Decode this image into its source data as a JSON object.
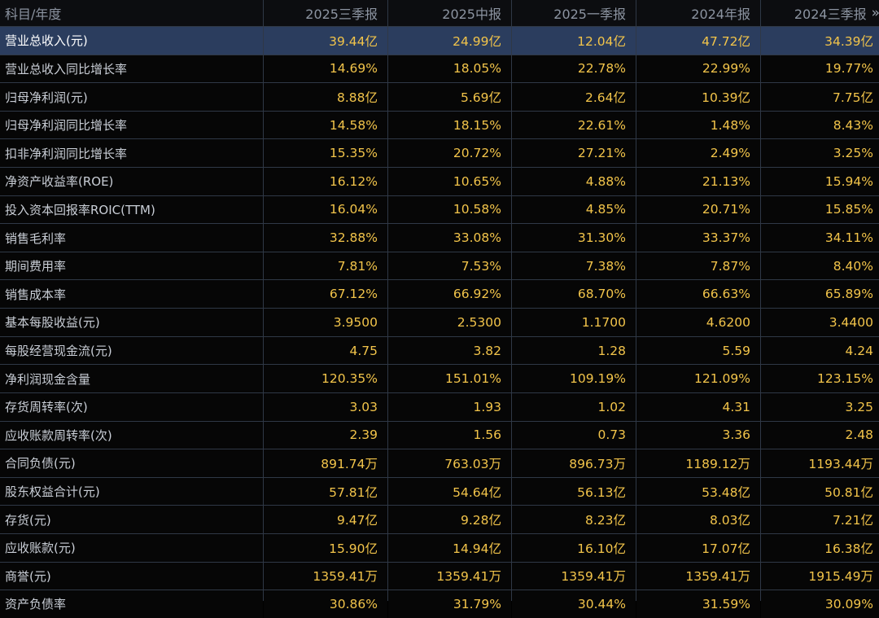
{
  "header": {
    "label": "科目/年度",
    "columns": [
      "2025三季报",
      "2025中报",
      "2025一季报",
      "2024年报",
      "2024三季报"
    ],
    "more": "»"
  },
  "rows": [
    {
      "label": "营业总收入(元)",
      "values": [
        "39.44亿",
        "24.99亿",
        "12.04亿",
        "47.72亿",
        "34.39亿"
      ]
    },
    {
      "label": "营业总收入同比增长率",
      "values": [
        "14.69%",
        "18.05%",
        "22.78%",
        "22.99%",
        "19.77%"
      ]
    },
    {
      "label": "归母净利润(元)",
      "values": [
        "8.88亿",
        "5.69亿",
        "2.64亿",
        "10.39亿",
        "7.75亿"
      ]
    },
    {
      "label": "归母净利润同比增长率",
      "values": [
        "14.58%",
        "18.15%",
        "22.61%",
        "1.48%",
        "8.43%"
      ]
    },
    {
      "label": "扣非净利润同比增长率",
      "values": [
        "15.35%",
        "20.72%",
        "27.21%",
        "2.49%",
        "3.25%"
      ]
    },
    {
      "label": "净资产收益率(ROE)",
      "values": [
        "16.12%",
        "10.65%",
        "4.88%",
        "21.13%",
        "15.94%"
      ]
    },
    {
      "label": "投入资本回报率ROIC(TTM)",
      "values": [
        "16.04%",
        "10.58%",
        "4.85%",
        "20.71%",
        "15.85%"
      ]
    },
    {
      "label": "销售毛利率",
      "values": [
        "32.88%",
        "33.08%",
        "31.30%",
        "33.37%",
        "34.11%"
      ]
    },
    {
      "label": "期间费用率",
      "values": [
        "7.81%",
        "7.53%",
        "7.38%",
        "7.87%",
        "8.40%"
      ]
    },
    {
      "label": "销售成本率",
      "values": [
        "67.12%",
        "66.92%",
        "68.70%",
        "66.63%",
        "65.89%"
      ]
    },
    {
      "label": "基本每股收益(元)",
      "values": [
        "3.9500",
        "2.5300",
        "1.1700",
        "4.6200",
        "3.4400"
      ]
    },
    {
      "label": "每股经营现金流(元)",
      "values": [
        "4.75",
        "3.82",
        "1.28",
        "5.59",
        "4.24"
      ]
    },
    {
      "label": "净利润现金含量",
      "values": [
        "120.35%",
        "151.01%",
        "109.19%",
        "121.09%",
        "123.15%"
      ]
    },
    {
      "label": "存货周转率(次)",
      "values": [
        "3.03",
        "1.93",
        "1.02",
        "4.31",
        "3.25"
      ]
    },
    {
      "label": "应收账款周转率(次)",
      "values": [
        "2.39",
        "1.56",
        "0.73",
        "3.36",
        "2.48"
      ]
    },
    {
      "label": "合同负债(元)",
      "values": [
        "891.74万",
        "763.03万",
        "896.73万",
        "1189.12万",
        "1193.44万"
      ]
    },
    {
      "label": "股东权益合计(元)",
      "values": [
        "57.81亿",
        "54.64亿",
        "56.13亿",
        "53.48亿",
        "50.81亿"
      ]
    },
    {
      "label": "存货(元)",
      "values": [
        "9.47亿",
        "9.28亿",
        "8.23亿",
        "8.03亿",
        "7.21亿"
      ]
    },
    {
      "label": "应收账款(元)",
      "values": [
        "15.90亿",
        "14.94亿",
        "16.10亿",
        "17.07亿",
        "16.38亿"
      ]
    },
    {
      "label": "商誉(元)",
      "values": [
        "1359.41万",
        "1359.41万",
        "1359.41万",
        "1359.41万",
        "1915.49万"
      ]
    },
    {
      "label": "资产负债率",
      "values": [
        "30.86%",
        "31.79%",
        "30.44%",
        "31.59%",
        "30.09%"
      ]
    }
  ],
  "colors": {
    "value_text": "#f2c44a",
    "label_text": "#c9ced6",
    "highlight_row_bg": "#2b3d5e",
    "grid_line": "#2f3846",
    "background": "#060606"
  },
  "highlighted_row": 0
}
